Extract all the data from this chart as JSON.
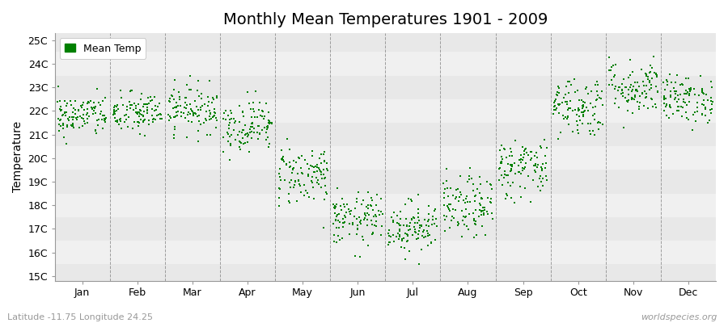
{
  "title": "Monthly Mean Temperatures 1901 - 2009",
  "ylabel": "Temperature",
  "xlabel_lat_lon": "Latitude -11.75 Longitude 24.25",
  "watermark": "worldspecies.org",
  "legend_label": "Mean Temp",
  "ytick_labels": [
    "15C",
    "16C",
    "17C",
    "18C",
    "19C",
    "20C",
    "21C",
    "22C",
    "23C",
    "24C",
    "25C"
  ],
  "ytick_values": [
    15,
    16,
    17,
    18,
    19,
    20,
    21,
    22,
    23,
    24,
    25
  ],
  "ylim": [
    14.8,
    25.3
  ],
  "xlim": [
    0,
    12
  ],
  "months": [
    "Jan",
    "Feb",
    "Mar",
    "Apr",
    "May",
    "Jun",
    "Jul",
    "Aug",
    "Sep",
    "Oct",
    "Nov",
    "Dec"
  ],
  "month_tick_positions": [
    0.5,
    1.5,
    2.5,
    3.5,
    4.5,
    5.5,
    6.5,
    7.5,
    8.5,
    9.5,
    10.5,
    11.5
  ],
  "divider_positions": [
    1,
    2,
    3,
    4,
    5,
    6,
    7,
    8,
    9,
    10,
    11
  ],
  "n_years": 109,
  "mean_temps": [
    21.8,
    21.9,
    22.1,
    21.4,
    19.3,
    17.4,
    17.1,
    17.9,
    19.6,
    22.2,
    23.0,
    22.5
  ],
  "std_temps": [
    0.45,
    0.45,
    0.5,
    0.55,
    0.65,
    0.55,
    0.55,
    0.65,
    0.65,
    0.65,
    0.6,
    0.5
  ],
  "dot_color": "#008000",
  "dot_size": 2.5,
  "bg_color_odd": "#e8e8e8",
  "bg_color_even": "#f0f0f0",
  "title_fontsize": 14,
  "axis_fontsize": 10,
  "tick_fontsize": 9,
  "legend_fontsize": 9,
  "seed": 42
}
